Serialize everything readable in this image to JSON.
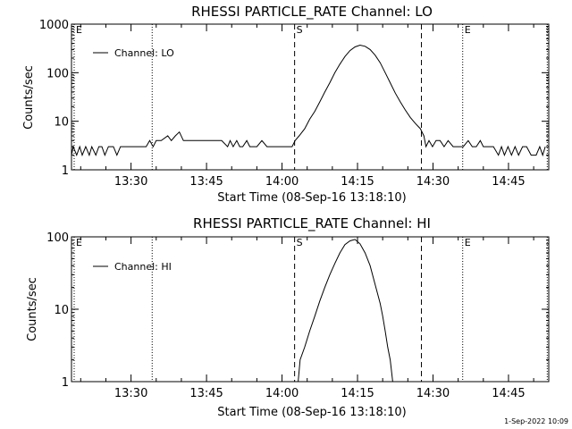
{
  "chart_data": [
    {
      "type": "line",
      "title": "RHESSI PARTICLE_RATE Channel: LO",
      "xlabel": "Start Time (08-Sep-16 13:18:10)",
      "ylabel": "Counts/sec",
      "yscale": "log",
      "ylim": [
        1,
        1000
      ],
      "yticks": [
        1,
        10,
        100,
        1000
      ],
      "ytick_labels": [
        "1",
        "10",
        "100",
        "1000"
      ],
      "xlim": [
        18.17,
        113.0
      ],
      "xticks": [
        30,
        45,
        60,
        75,
        90,
        105
      ],
      "xtick_labels": [
        "13:30",
        "13:45",
        "14:00",
        "14:15",
        "14:30",
        "14:45"
      ],
      "legend": {
        "location": "top-left",
        "entries": [
          "Channel: LO"
        ]
      },
      "markers": [
        {
          "label": "E",
          "x": 18.7,
          "style": "dotted"
        },
        {
          "label": "",
          "x": 34.2,
          "style": "dotted"
        },
        {
          "label": "S",
          "x": 62.5,
          "style": "dashed"
        },
        {
          "label": "",
          "x": 87.7,
          "style": "dashed"
        },
        {
          "label": "E",
          "x": 95.9,
          "style": "dotted"
        },
        {
          "label": "",
          "x": 112.7,
          "style": "dotted"
        }
      ],
      "series": [
        {
          "name": "Channel: LO",
          "points": [
            [
              18.17,
              2
            ],
            [
              18.5,
              3
            ],
            [
              19.2,
              2
            ],
            [
              19.8,
              3
            ],
            [
              20.3,
              2
            ],
            [
              21,
              3
            ],
            [
              21.7,
              2
            ],
            [
              22.2,
              3
            ],
            [
              23,
              2
            ],
            [
              23.6,
              3
            ],
            [
              24.2,
              3
            ],
            [
              24.8,
              2
            ],
            [
              25.5,
              3
            ],
            [
              26.5,
              3
            ],
            [
              27.2,
              2
            ],
            [
              27.9,
              3
            ],
            [
              29,
              3
            ],
            [
              30.5,
              3
            ],
            [
              31.5,
              3
            ],
            [
              32.3,
              3
            ],
            [
              33,
              3
            ],
            [
              33.7,
              4
            ],
            [
              34.4,
              3
            ],
            [
              35,
              4
            ],
            [
              36,
              4
            ],
            [
              37.3,
              5
            ],
            [
              38,
              4
            ],
            [
              38.8,
              5
            ],
            [
              39.6,
              6
            ],
            [
              40.4,
              4
            ],
            [
              41.5,
              4
            ],
            [
              43.5,
              4
            ],
            [
              46,
              4
            ],
            [
              48,
              4
            ],
            [
              49.2,
              3
            ],
            [
              49.7,
              4
            ],
            [
              50.3,
              3
            ],
            [
              51,
              4
            ],
            [
              51.6,
              3
            ],
            [
              52.2,
              3
            ],
            [
              53,
              4
            ],
            [
              53.6,
              3
            ],
            [
              54.2,
              3
            ],
            [
              55,
              3
            ],
            [
              56,
              4
            ],
            [
              57,
              3
            ],
            [
              58,
              3
            ],
            [
              59.5,
              3
            ],
            [
              61,
              3
            ],
            [
              62,
              3
            ],
            [
              62.6,
              4
            ],
            [
              63.4,
              5
            ],
            [
              64.5,
              7
            ],
            [
              65.5,
              11
            ],
            [
              66.5,
              16
            ],
            [
              67.5,
              25
            ],
            [
              68.5,
              40
            ],
            [
              69.5,
              62
            ],
            [
              70.5,
              100
            ],
            [
              71.5,
              150
            ],
            [
              72.5,
              215
            ],
            [
              73.5,
              285
            ],
            [
              74.5,
              340
            ],
            [
              75.5,
              370
            ],
            [
              76.5,
              350
            ],
            [
              77.5,
              300
            ],
            [
              78.5,
              230
            ],
            [
              79.5,
              160
            ],
            [
              80.5,
              100
            ],
            [
              81.5,
              62
            ],
            [
              82.5,
              38
            ],
            [
              83.5,
              25
            ],
            [
              84.5,
              17
            ],
            [
              85.5,
              12
            ],
            [
              86.5,
              9
            ],
            [
              87.5,
              7
            ],
            [
              88.2,
              5
            ],
            [
              88.6,
              3
            ],
            [
              89.2,
              4
            ],
            [
              89.9,
              3
            ],
            [
              90.6,
              4
            ],
            [
              91.4,
              4
            ],
            [
              92.2,
              3
            ],
            [
              93,
              4
            ],
            [
              94,
              3
            ],
            [
              95,
              3
            ],
            [
              96,
              3
            ],
            [
              97,
              4
            ],
            [
              97.8,
              3
            ],
            [
              98.6,
              3
            ],
            [
              99.4,
              4
            ],
            [
              100,
              3
            ],
            [
              101,
              3
            ],
            [
              102,
              3
            ],
            [
              103,
              2
            ],
            [
              103.6,
              3
            ],
            [
              104.2,
              2
            ],
            [
              104.9,
              3
            ],
            [
              105.6,
              2
            ],
            [
              106.3,
              3
            ],
            [
              107,
              2
            ],
            [
              107.8,
              3
            ],
            [
              108.6,
              3
            ],
            [
              109.5,
              2
            ],
            [
              110.5,
              2
            ],
            [
              111.2,
              3
            ],
            [
              111.8,
              2
            ],
            [
              112.3,
              3
            ]
          ]
        }
      ]
    },
    {
      "type": "line",
      "title": "RHESSI PARTICLE_RATE Channel: HI",
      "xlabel": "Start Time (08-Sep-16 13:18:10)",
      "ylabel": "Counts/sec",
      "yscale": "log",
      "ylim": [
        1,
        100
      ],
      "yticks": [
        1,
        10,
        100
      ],
      "ytick_labels": [
        "1",
        "10",
        "100"
      ],
      "xlim": [
        18.17,
        113.0
      ],
      "xticks": [
        30,
        45,
        60,
        75,
        90,
        105
      ],
      "xtick_labels": [
        "13:30",
        "13:45",
        "14:00",
        "14:15",
        "14:30",
        "14:45"
      ],
      "legend": {
        "location": "top-left",
        "entries": [
          "Channel: HI"
        ]
      },
      "markers": [
        {
          "label": "E",
          "x": 18.7,
          "style": "dotted"
        },
        {
          "label": "",
          "x": 34.2,
          "style": "dotted"
        },
        {
          "label": "S",
          "x": 62.5,
          "style": "dashed"
        },
        {
          "label": "",
          "x": 87.7,
          "style": "dashed"
        },
        {
          "label": "E",
          "x": 95.9,
          "style": "dotted"
        },
        {
          "label": "",
          "x": 112.7,
          "style": "dotted"
        }
      ],
      "series": [
        {
          "name": "Channel: HI",
          "points": [
            [
              63.2,
              1
            ],
            [
              63.6,
              2
            ],
            [
              64.5,
              3
            ],
            [
              65.5,
              5
            ],
            [
              66.5,
              8
            ],
            [
              67.5,
              13
            ],
            [
              68.5,
              20
            ],
            [
              69.5,
              30
            ],
            [
              70.5,
              43
            ],
            [
              71.5,
              60
            ],
            [
              72.5,
              78
            ],
            [
              73.5,
              88
            ],
            [
              74.5,
              92
            ],
            [
              75.5,
              80
            ],
            [
              76.5,
              60
            ],
            [
              77.5,
              40
            ],
            [
              78.5,
              22
            ],
            [
              79.5,
              12
            ],
            [
              80,
              8
            ],
            [
              80.5,
              5
            ],
            [
              81,
              3
            ],
            [
              81.5,
              2
            ],
            [
              82,
              1
            ]
          ]
        }
      ]
    }
  ],
  "footer": {
    "stamp": "1-Sep-2022 10:09"
  }
}
